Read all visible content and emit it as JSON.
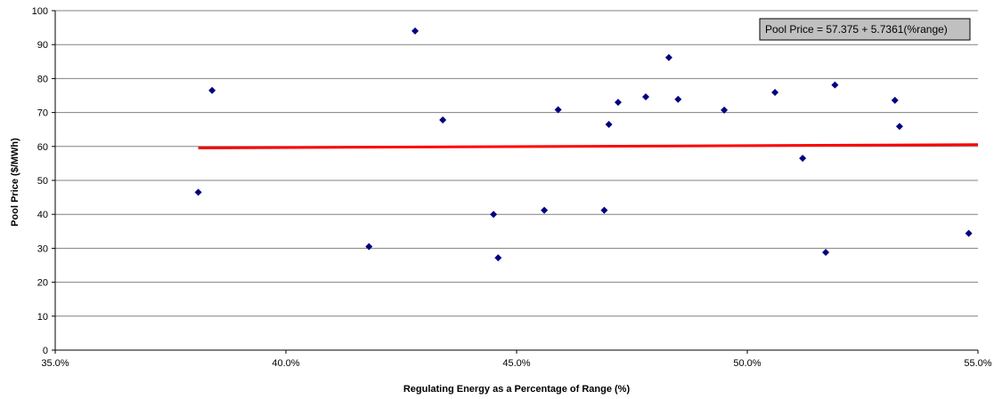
{
  "chart_data": {
    "type": "scatter",
    "title": "",
    "xlabel": "Regulating Energy as a Percentage of Range (%)",
    "ylabel": "Pool Price ($/MWh)",
    "xlim": [
      35.0,
      55.0
    ],
    "ylim": [
      0,
      100
    ],
    "x_ticks": [
      35,
      40,
      45,
      50,
      55
    ],
    "x_tick_labels": [
      "35.0%",
      "40.0%",
      "45.0%",
      "50.0%",
      "55.0%"
    ],
    "y_ticks": [
      0,
      10,
      20,
      30,
      40,
      50,
      60,
      70,
      80,
      90,
      100
    ],
    "y_tick_labels": [
      "0",
      "10",
      "20",
      "30",
      "40",
      "50",
      "60",
      "70",
      "80",
      "90",
      "100"
    ],
    "grid": "horizontal",
    "legend": "none",
    "annotation": "Pool Price = 57.375 + 5.7361(%range)",
    "points": [
      {
        "x": 38.1,
        "y": 46.5
      },
      {
        "x": 38.4,
        "y": 76.5
      },
      {
        "x": 41.8,
        "y": 30.5
      },
      {
        "x": 42.8,
        "y": 94.0
      },
      {
        "x": 43.4,
        "y": 67.8
      },
      {
        "x": 44.5,
        "y": 40.0
      },
      {
        "x": 44.6,
        "y": 27.2
      },
      {
        "x": 45.6,
        "y": 41.2
      },
      {
        "x": 45.9,
        "y": 70.8
      },
      {
        "x": 46.9,
        "y": 41.2
      },
      {
        "x": 47.0,
        "y": 66.5
      },
      {
        "x": 47.2,
        "y": 73.0
      },
      {
        "x": 47.8,
        "y": 74.6
      },
      {
        "x": 48.3,
        "y": 86.2
      },
      {
        "x": 48.5,
        "y": 73.9
      },
      {
        "x": 49.5,
        "y": 70.7
      },
      {
        "x": 50.6,
        "y": 75.9
      },
      {
        "x": 51.2,
        "y": 56.5
      },
      {
        "x": 51.7,
        "y": 28.8
      },
      {
        "x": 51.9,
        "y": 78.1
      },
      {
        "x": 53.2,
        "y": 73.6
      },
      {
        "x": 53.3,
        "y": 65.9
      },
      {
        "x": 54.8,
        "y": 34.4
      }
    ],
    "trendline": {
      "x": [
        38.1,
        55.0
      ],
      "y": [
        59.56,
        60.53
      ]
    },
    "colors": {
      "points": "#000080",
      "trendline": "#ff0000",
      "grid": "#808080",
      "annotation_bg": "#c0c0c0"
    }
  }
}
